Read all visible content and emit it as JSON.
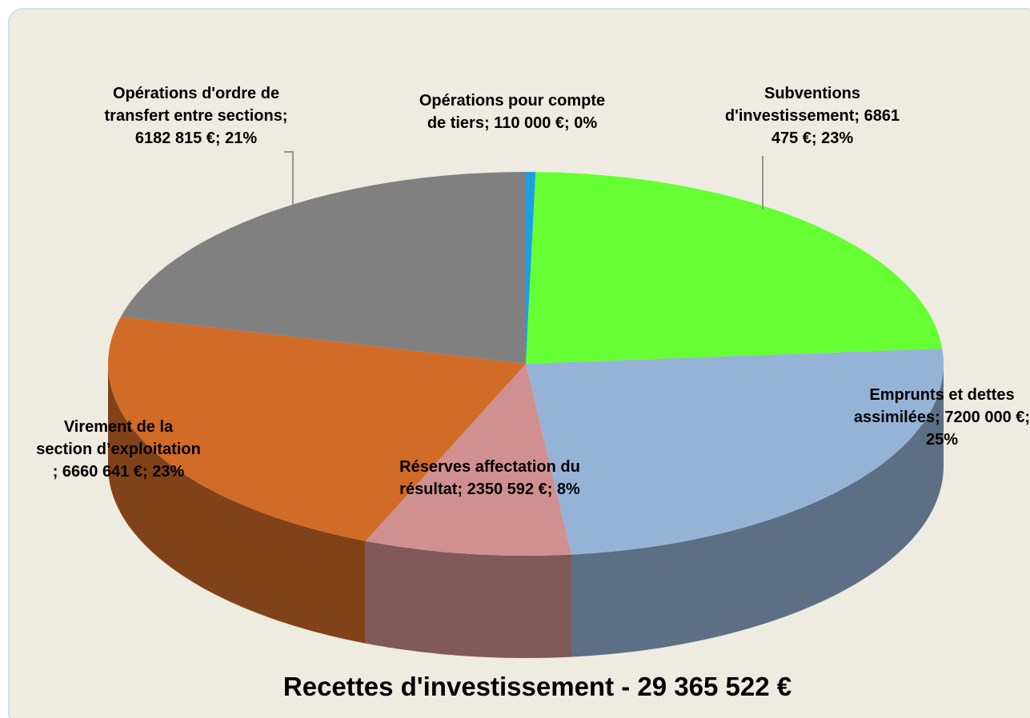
{
  "chart_data": {
    "type": "pie",
    "title": "Recettes d'investissement - 29 365 522 €",
    "labels": [
      "Opérations pour compte de tiers; 110 000 €; 0%",
      "Subventions d'investissement; 6861 475 €; 23%",
      "Emprunts et dettes assimilées; 7200 000 €; 25%",
      "Réserves affectation du résultat; 2350 592 €; 8%",
      "Virement de la section d’exploitation ; 6660 641 €; 23%",
      "Opérations d'ordre de transfert entre sections; 6182 815 €; 21%"
    ],
    "values": [
      110000,
      6861475,
      7200000,
      2350592,
      6660641,
      6182815
    ],
    "colors": [
      "#1f9ee2",
      "#66ff33",
      "#95b3d7",
      "#d09090",
      "#d16b28",
      "#808080"
    ]
  }
}
